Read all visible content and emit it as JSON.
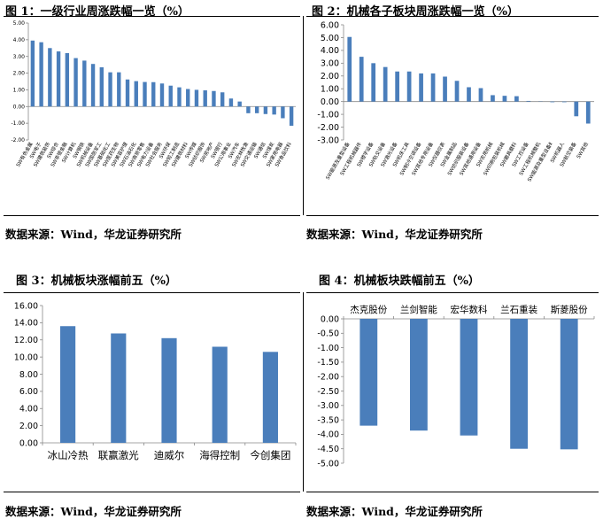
{
  "panels": [
    {
      "title": "图 1：一级行业周涨跌幅一览（%）",
      "source": "数据来源：Wind，华龙证券研究所"
    },
    {
      "title": "图 2：机械各子板块周涨跌幅一览（%）",
      "source": "数据来源：Wind，华龙证券研究所"
    },
    {
      "title": "图 3：机械板块涨幅前五（%）",
      "source": "数据来源：Wind，华龙证券研究所"
    },
    {
      "title": "图 4：机械板块跌幅前五（%）",
      "source": "数据来源：Wind，华龙证券研究所"
    }
  ],
  "colors": {
    "bar": "#4a7ebb"
  },
  "chart_data": [
    {
      "type": "bar",
      "title": "图 1：一级行业周涨跌幅一览（%）",
      "ylim": [
        -2,
        5
      ],
      "yticks": [
        "5.00",
        "4.00",
        "3.00",
        "2.00",
        "1.00",
        "0.00",
        "-1.00",
        "-2.00"
      ],
      "categories": [
        "SW有色金属",
        "SW电子",
        "SW建筑装饰",
        "SW综合",
        "SW非银金融",
        "SW计算机",
        "SW钢铁",
        "SW机械设备",
        "SW国防军工",
        "SW基础化工",
        "SW医药生物",
        "SW美容护理",
        "SW石油石化",
        "SW商贸零售",
        "SW电力设备",
        "SW社会服务",
        "SW环保",
        "SW轻工制造",
        "SW建筑材料",
        "SW传媒",
        "SW纺织服饰",
        "SW房地产",
        "SW银行",
        "SW公用事业",
        "SW汽车",
        "SW农林牧渔",
        "SW交通运输",
        "SW通信",
        "SW煤炭",
        "SW家用电器",
        "SW食品饮料"
      ],
      "values": [
        3.95,
        3.85,
        3.5,
        3.3,
        3.2,
        2.9,
        2.75,
        2.55,
        2.35,
        2.05,
        2.05,
        1.62,
        1.52,
        1.47,
        1.46,
        1.38,
        1.25,
        1.15,
        1.05,
        1.0,
        0.97,
        0.93,
        0.85,
        0.48,
        0.3,
        -0.4,
        -0.4,
        -0.45,
        -0.48,
        -0.7,
        -1.15
      ]
    },
    {
      "type": "bar",
      "title": "图 2：机械各子板块周涨跌幅一览（%）",
      "ylim": [
        -3,
        6
      ],
      "yticks": [
        "6.00",
        "5.00",
        "4.00",
        "3.00",
        "2.00",
        "1.00",
        "0.00",
        "-1.00",
        "-2.00",
        "-3.00"
      ],
      "categories": [
        "SW能源及重型设备",
        "SW工程机械器件",
        "SW楼宇设备",
        "SW轨交设备",
        "SW激光设备",
        "SW机床工具",
        "SW制冷空调设备",
        "SW其他专用设备",
        "SW仪器仪表",
        "SW金属制品",
        "SW纺织服装设备",
        "SW其他通用设备",
        "SW农用机械",
        "SW印刷包装机械",
        "SW磨具磨料",
        "SW工控设备",
        "SW工程机械整机",
        "SW能源及重型设备Ⅱ",
        "SW机器人",
        "SW航空装备",
        "SW其他"
      ],
      "values": [
        5.05,
        3.5,
        3.0,
        2.7,
        2.35,
        2.35,
        2.2,
        2.2,
        1.95,
        1.62,
        1.12,
        1.05,
        0.5,
        0.45,
        0.42,
        0.05,
        0.02,
        -0.05,
        -0.05,
        -1.15,
        -1.72
      ]
    },
    {
      "type": "bar",
      "title": "图 3：机械板块涨幅前五（%）",
      "ylim": [
        0,
        16
      ],
      "yticks": [
        "16.00",
        "14.00",
        "12.00",
        "10.00",
        "8.00",
        "6.00",
        "4.00",
        "2.00",
        "0.00"
      ],
      "categories": [
        "冰山冷热",
        "联赢激光",
        "迪威尔",
        "海得控制",
        "今创集团"
      ],
      "values": [
        13.6,
        12.75,
        12.2,
        11.2,
        10.6
      ]
    },
    {
      "type": "bar",
      "title": "图 4：机械板块跌幅前五（%）",
      "ylim": [
        -5,
        0
      ],
      "yticks": [
        "0.00",
        "-0.50",
        "-1.00",
        "-1.50",
        "-2.00",
        "-2.50",
        "-3.00",
        "-3.50",
        "-4.00",
        "-4.50",
        "-5.00"
      ],
      "categories": [
        "杰克股份",
        "兰剑智能",
        "宏华数科",
        "兰石重装",
        "斯菱股份"
      ],
      "values": [
        -3.7,
        -3.87,
        -4.04,
        -4.5,
        -4.52
      ]
    }
  ]
}
